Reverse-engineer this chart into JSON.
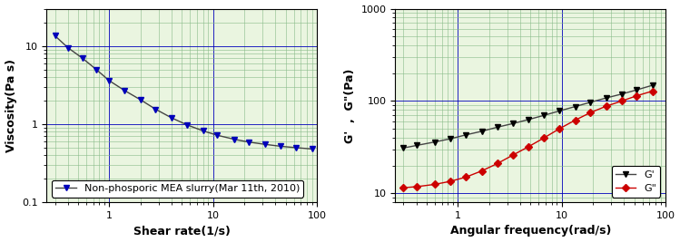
{
  "left_chart": {
    "xlabel": "Shear rate(1/s)",
    "ylabel": "Viscosity(Pa s)",
    "xlim": [
      0.25,
      100
    ],
    "ylim": [
      0.1,
      30
    ],
    "legend_label": "Non-phosporic MEA slurry(Mar 11th, 2010)",
    "line_color": "#444444",
    "marker_color": "#0000bb",
    "x": [
      0.3,
      0.4,
      0.55,
      0.75,
      1.0,
      1.4,
      2.0,
      2.8,
      4.0,
      5.6,
      8.0,
      11.0,
      16.0,
      22.0,
      32.0,
      45.0,
      63.0,
      90.0
    ],
    "y": [
      13.5,
      9.5,
      7.0,
      5.0,
      3.6,
      2.7,
      2.05,
      1.55,
      1.2,
      0.98,
      0.82,
      0.72,
      0.64,
      0.59,
      0.55,
      0.52,
      0.5,
      0.48
    ]
  },
  "right_chart": {
    "xlabel": "Angular frequency(rad/s)",
    "ylabel": "G'  ,  G\"(Pa)",
    "xlim": [
      0.25,
      100
    ],
    "ylim": [
      8,
      1000
    ],
    "Gprime_color": "#444444",
    "Gdprime_color": "#cc0000",
    "Gprime_x": [
      0.3,
      0.4,
      0.6,
      0.85,
      1.2,
      1.7,
      2.4,
      3.4,
      4.8,
      6.8,
      9.5,
      13.5,
      19.0,
      27.0,
      38.0,
      53.0,
      75.0
    ],
    "Gprime_y": [
      31,
      33,
      36,
      39,
      43,
      47,
      52,
      57,
      63,
      70,
      78,
      87,
      97,
      108,
      119,
      132,
      148
    ],
    "Gdprime_x": [
      0.3,
      0.4,
      0.6,
      0.85,
      1.2,
      1.7,
      2.4,
      3.4,
      4.8,
      6.8,
      9.5,
      13.5,
      19.0,
      27.0,
      38.0,
      53.0,
      75.0
    ],
    "Gdprime_y": [
      11.5,
      11.8,
      12.5,
      13.5,
      15.0,
      17.5,
      21.0,
      26.0,
      32.0,
      40.0,
      50.0,
      62.0,
      75.0,
      88.0,
      100.0,
      114.0,
      128.0
    ]
  },
  "bg_color": "#eaf5e0",
  "grid_major_color": "#0000bb",
  "grid_minor_color": "#88bb88",
  "label_fontsize": 9,
  "tick_fontsize": 8,
  "legend_fontsize": 8
}
